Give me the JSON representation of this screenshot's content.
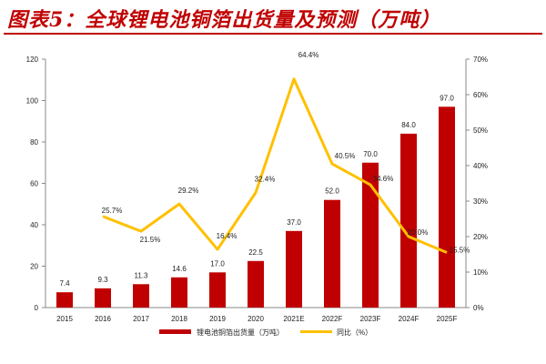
{
  "title": "图表5：全球锂电池铜箔出货量及预测（万吨）",
  "chart_data": {
    "type": "bar+line",
    "title": "图表5：全球锂电池铜箔出货量及预测（万吨）",
    "categories": [
      "2015",
      "2016",
      "2017",
      "2018",
      "2019",
      "2020",
      "2021E",
      "2022F",
      "2023F",
      "2024F",
      "2025F"
    ],
    "series": [
      {
        "name": "锂电池铜箔出货量（万吨）",
        "type": "bar",
        "axis": "left",
        "color": "#C00000",
        "values": [
          7.4,
          9.3,
          11.3,
          14.6,
          17.0,
          22.5,
          37.0,
          52.0,
          70.0,
          84.0,
          97.0
        ]
      },
      {
        "name": "同比（%）",
        "type": "line",
        "axis": "right",
        "color": "#FFC000",
        "values": [
          null,
          25.7,
          21.5,
          29.2,
          16.4,
          32.4,
          64.4,
          40.5,
          34.6,
          20.0,
          15.5
        ]
      }
    ],
    "left_axis": {
      "min": 0,
      "max": 120,
      "ticks": [
        "0",
        "20",
        "40",
        "60",
        "80",
        "100",
        "120"
      ]
    },
    "right_axis": {
      "min": 0,
      "max": 70,
      "ticks": [
        "0%",
        "10%",
        "20%",
        "30%",
        "40%",
        "50%",
        "60%",
        "70%"
      ]
    },
    "grid": false,
    "legend": "bottom"
  }
}
